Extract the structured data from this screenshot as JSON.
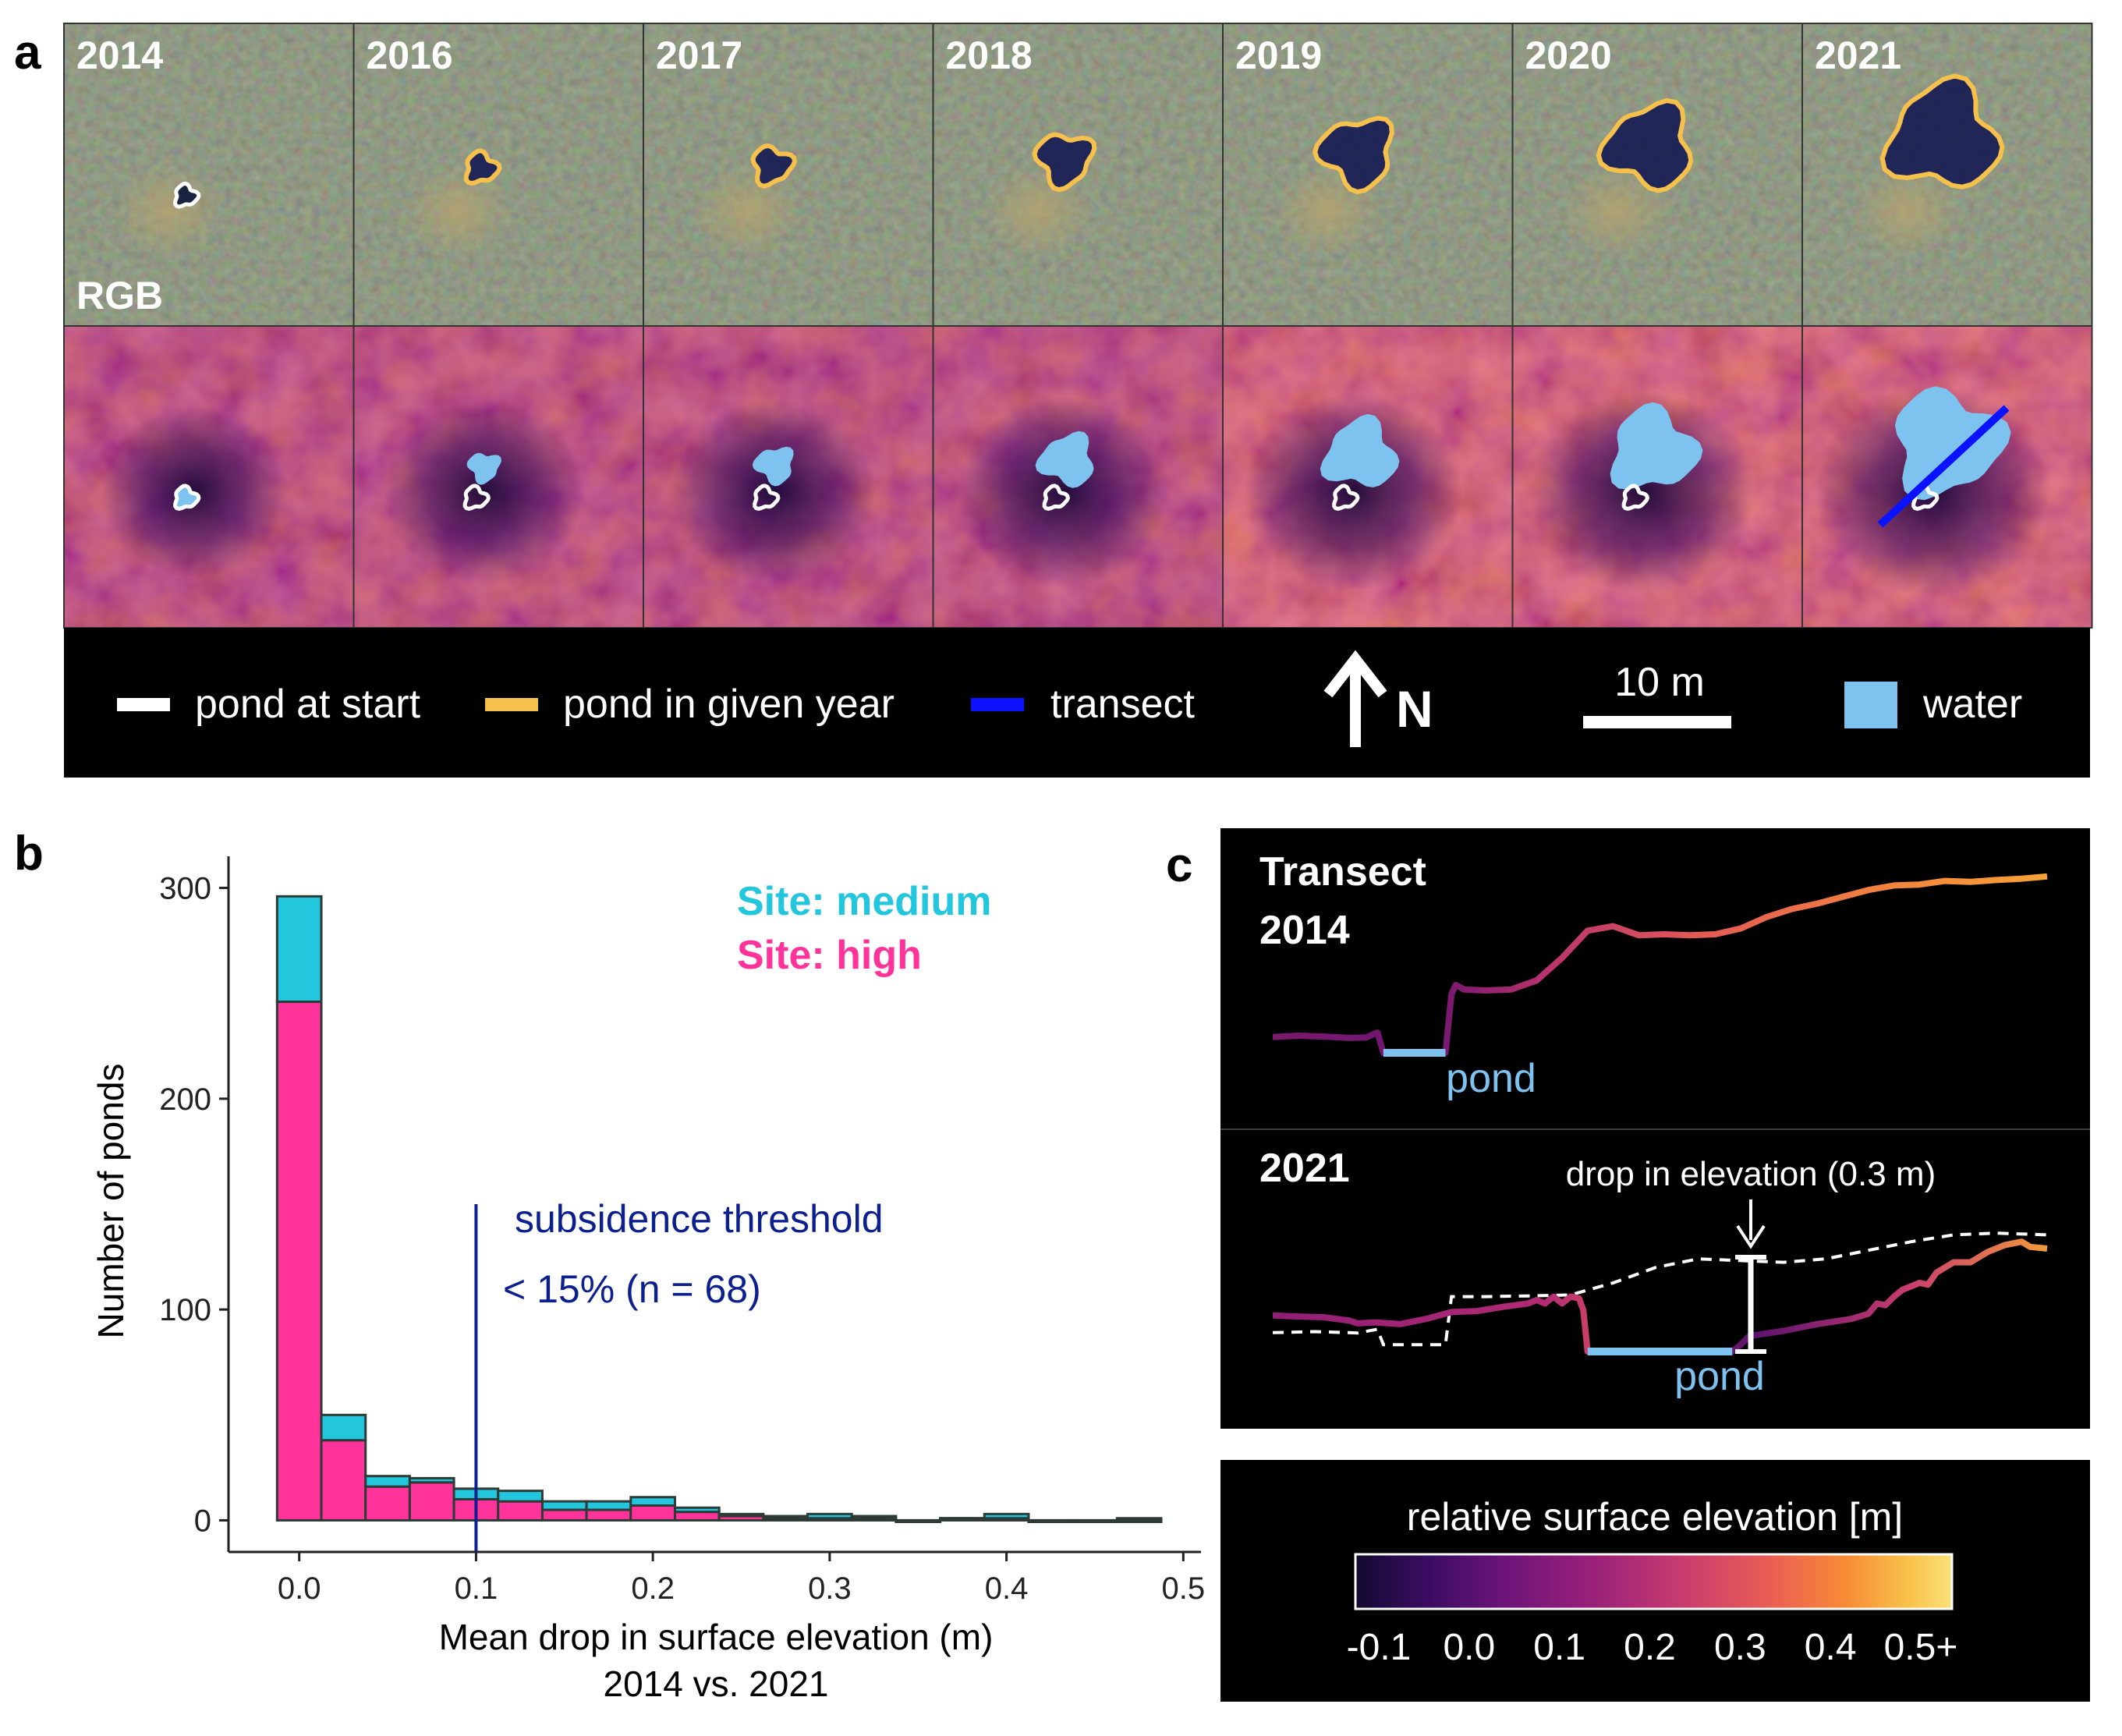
{
  "panel_a": {
    "letter": "a",
    "years": [
      "2014",
      "2016",
      "2017",
      "2018",
      "2019",
      "2020",
      "2021"
    ],
    "rgb_label": "RGB",
    "legend": {
      "pond_at_start": "pond at start",
      "pond_in_given_year": "pond in given year",
      "transect": "transect",
      "north": "N",
      "scale": "10 m",
      "water": "water"
    },
    "colors": {
      "pond_at_start": "#ffffff",
      "pond_in_given_year": "#f6c04d",
      "transect": "#0a12ff",
      "water": "#7ec3f0"
    }
  },
  "panel_b": {
    "letter": "b",
    "site_medium": "Site: medium",
    "site_high": "Site: high",
    "threshold_line1": "subsidence threshold",
    "threshold_line2": "< 15% (n = 68)",
    "ylabel": "Number of ponds",
    "xlabel_line1": "Mean drop in surface elevation (m)",
    "xlabel_line2": "2014 vs. 2021"
  },
  "panel_c": {
    "letter": "c",
    "title_line1": "Transect",
    "title_line2": "2014",
    "year_2021": "2021",
    "pond": "pond",
    "drop_label": "drop in elevation (0.3 m)",
    "colorbar_title": "relative surface elevation [m]"
  },
  "chart_data": [
    {
      "type": "bar",
      "stacked": true,
      "title": "",
      "xlabel": "Mean drop in surface elevation (m) 2014 vs. 2021",
      "ylabel": "Number of ponds",
      "bin_width": 0.025,
      "x": [
        0.0,
        0.025,
        0.05,
        0.075,
        0.1,
        0.125,
        0.15,
        0.175,
        0.2,
        0.225,
        0.25,
        0.275,
        0.3,
        0.325,
        0.35,
        0.375,
        0.4,
        0.425,
        0.45,
        0.475
      ],
      "series": [
        {
          "name": "Site: high",
          "color": "#ff3399",
          "values": [
            246,
            38,
            16,
            18,
            10,
            9,
            5,
            5,
            7,
            4,
            2,
            1,
            1,
            1,
            0,
            1,
            1,
            0,
            0,
            0
          ]
        },
        {
          "name": "Site: medium",
          "color": "#22c6dd",
          "values": [
            50,
            12,
            5,
            2,
            5,
            5,
            4,
            4,
            4,
            2,
            1,
            1,
            2,
            1,
            0,
            0,
            2,
            0,
            0,
            1
          ]
        }
      ],
      "xlim": [
        -0.04,
        0.51
      ],
      "ylim": [
        -15,
        315
      ],
      "xticks": [
        "0.0",
        "0.1",
        "0.2",
        "0.3",
        "0.4",
        "0.5"
      ],
      "xtick_values": [
        0.0,
        0.1,
        0.2,
        0.3,
        0.4,
        0.5
      ],
      "yticks": [
        "0",
        "100",
        "200",
        "300"
      ],
      "ytick_values": [
        0,
        100,
        200,
        300
      ],
      "threshold": 0.1,
      "threshold_ytop": 150,
      "threshold_color": "#0b1f8f",
      "grid": false,
      "legend": "top-right"
    },
    {
      "type": "line",
      "title": "Transect 2014",
      "series": [
        {
          "name": "2014",
          "x": [
            0,
            3,
            6,
            9,
            11,
            12.3,
            13,
            20.3,
            21,
            21.5,
            22.5,
            25,
            28,
            31,
            34,
            37,
            40,
            43,
            46,
            49,
            52,
            55,
            58,
            61,
            64,
            67,
            70,
            73,
            76,
            79,
            82,
            85,
            88,
            91
          ],
          "y": [
            0.035,
            0.038,
            0.036,
            0.033,
            0.034,
            0.045,
            0.0,
            0.0,
            0.13,
            0.15,
            0.14,
            0.138,
            0.14,
            0.16,
            0.21,
            0.27,
            0.28,
            0.26,
            0.262,
            0.26,
            0.262,
            0.275,
            0.3,
            0.318,
            0.33,
            0.345,
            0.36,
            0.37,
            0.372,
            0.38,
            0.378,
            0.382,
            0.385,
            0.39
          ]
        }
      ],
      "pond_extent_x": [
        13,
        20.3
      ]
    },
    {
      "type": "line",
      "title": "2021",
      "series": [
        {
          "name": "2021",
          "x": [
            0,
            3,
            6,
            9,
            10,
            12,
            15,
            18,
            21,
            24,
            27,
            30,
            31,
            32,
            33,
            34,
            35,
            36,
            36.5,
            37,
            54,
            55,
            56,
            60,
            64,
            68,
            70,
            71,
            72,
            73,
            74,
            75,
            76,
            77,
            78,
            80,
            82,
            84,
            86,
            88,
            89,
            91
          ],
          "y": [
            0.085,
            0.082,
            0.08,
            0.07,
            0.062,
            0.065,
            0.06,
            0.075,
            0.095,
            0.098,
            0.11,
            0.12,
            0.13,
            0.12,
            0.14,
            0.12,
            0.14,
            0.135,
            0.1,
            -0.02,
            -0.02,
            0.0,
            0.025,
            0.04,
            0.06,
            0.075,
            0.09,
            0.12,
            0.115,
            0.14,
            0.16,
            0.17,
            0.18,
            0.175,
            0.21,
            0.24,
            0.24,
            0.27,
            0.29,
            0.3,
            0.285,
            0.28
          ]
        },
        {
          "name": "2014",
          "style": "dashed",
          "x": [
            0,
            5,
            10,
            12.3,
            13,
            20.3,
            21,
            25,
            30,
            35,
            40,
            45,
            50,
            55,
            60,
            65,
            70,
            75,
            80,
            85,
            91
          ],
          "y": [
            0.035,
            0.038,
            0.034,
            0.045,
            0.0,
            0.0,
            0.14,
            0.14,
            0.142,
            0.145,
            0.18,
            0.225,
            0.25,
            0.245,
            0.24,
            0.25,
            0.275,
            0.3,
            0.32,
            0.325,
            0.32
          ]
        }
      ],
      "pond_extent_x": [
        37,
        54
      ],
      "drop_at_x": 46,
      "drop_m": 0.3
    }
  ],
  "colorbar": {
    "ticks": [
      "-0.1",
      "0.0",
      "0.1",
      "0.2",
      "0.3",
      "0.4",
      "0.5+"
    ],
    "tick_values": [
      -0.1,
      0.0,
      0.1,
      0.2,
      0.3,
      0.4,
      0.5
    ],
    "colors": [
      "#120a30",
      "#3a0c62",
      "#6d1479",
      "#9a217a",
      "#c83c6f",
      "#ea5f53",
      "#f78a36",
      "#f9c34b",
      "#fae07a"
    ]
  }
}
